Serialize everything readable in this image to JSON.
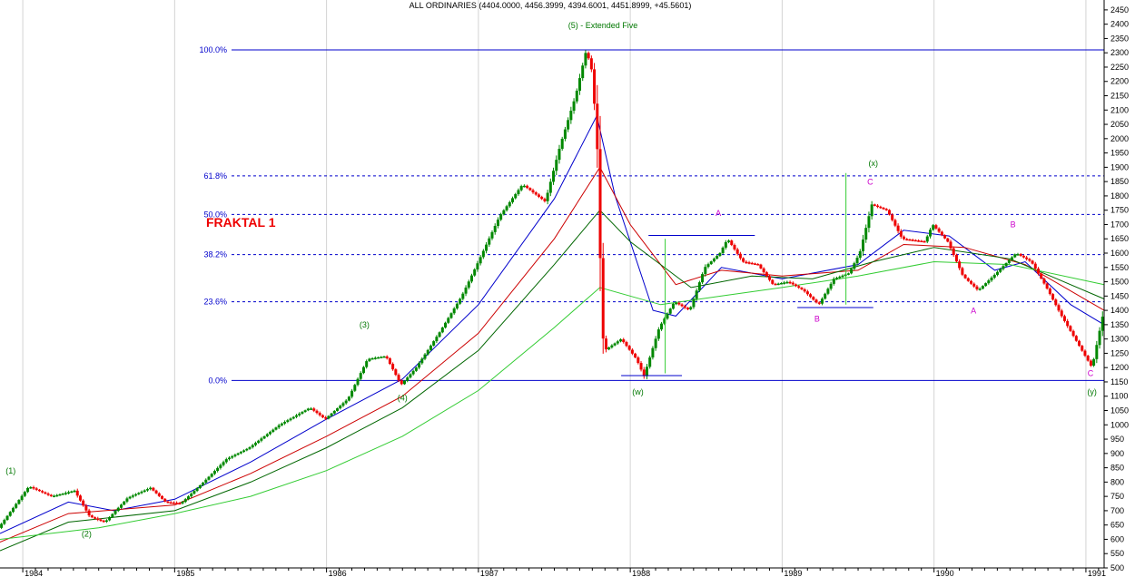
{
  "chart_data": {
    "type": "candlestick",
    "title": "ALL ORDINARIES (4404.0000, 4456.3999, 4394.6001, 4451.8999, +45.5601)",
    "subtitle": "(5) - Extended Five",
    "annotation": "FRAKTAL 1",
    "ylim": [
      500,
      2475
    ],
    "y_ticks": [
      500,
      550,
      600,
      650,
      700,
      750,
      800,
      850,
      900,
      950,
      1000,
      1050,
      1100,
      1150,
      1200,
      1250,
      1300,
      1350,
      1400,
      1450,
      1500,
      1550,
      1600,
      1650,
      1700,
      1750,
      1800,
      1850,
      1900,
      1950,
      2000,
      2050,
      2100,
      2150,
      2200,
      2250,
      2300,
      2350,
      2400,
      2450
    ],
    "xlim": [
      1983.85,
      1991.12
    ],
    "x_ticks": [
      {
        "x": 1984.0,
        "label": "1984"
      },
      {
        "x": 1985.0,
        "label": "1985"
      },
      {
        "x": 1986.0,
        "label": "1986"
      },
      {
        "x": 1987.0,
        "label": "1987"
      },
      {
        "x": 1988.0,
        "label": "1988"
      },
      {
        "x": 1989.0,
        "label": "1989"
      },
      {
        "x": 1990.0,
        "label": "1990"
      },
      {
        "x": 1991.0,
        "label": "1991"
      }
    ],
    "fib_levels": [
      {
        "label": "100.0%",
        "value": 2310,
        "style": "solid"
      },
      {
        "label": "61.8%",
        "value": 1870,
        "style": "dashed"
      },
      {
        "label": "50.0%",
        "value": 1735,
        "style": "dashed"
      },
      {
        "label": "38.2%",
        "value": 1595,
        "style": "dashed"
      },
      {
        "label": "23.6%",
        "value": 1430,
        "style": "dashed"
      },
      {
        "label": "0.0%",
        "value": 1155,
        "style": "solid"
      }
    ],
    "price_path": [
      [
        1983.85,
        640
      ],
      [
        1984.05,
        785
      ],
      [
        1984.2,
        750
      ],
      [
        1984.35,
        770
      ],
      [
        1984.45,
        680
      ],
      [
        1984.55,
        660
      ],
      [
        1984.7,
        745
      ],
      [
        1984.85,
        780
      ],
      [
        1984.95,
        730
      ],
      [
        1985.05,
        725
      ],
      [
        1985.2,
        800
      ],
      [
        1985.35,
        880
      ],
      [
        1985.5,
        920
      ],
      [
        1985.7,
        1000
      ],
      [
        1985.9,
        1060
      ],
      [
        1986.0,
        1020
      ],
      [
        1986.15,
        1090
      ],
      [
        1986.28,
        1230
      ],
      [
        1986.4,
        1240
      ],
      [
        1986.5,
        1140
      ],
      [
        1986.6,
        1200
      ],
      [
        1986.75,
        1320
      ],
      [
        1986.9,
        1450
      ],
      [
        1987.0,
        1560
      ],
      [
        1987.15,
        1730
      ],
      [
        1987.3,
        1840
      ],
      [
        1987.45,
        1780
      ],
      [
        1987.55,
        1980
      ],
      [
        1987.65,
        2150
      ],
      [
        1987.72,
        2310
      ],
      [
        1987.76,
        2230
      ],
      [
        1987.8,
        1900
      ],
      [
        1987.82,
        1350
      ],
      [
        1987.84,
        1260
      ],
      [
        1987.95,
        1300
      ],
      [
        1988.05,
        1230
      ],
      [
        1988.1,
        1170
      ],
      [
        1988.2,
        1340
      ],
      [
        1988.3,
        1430
      ],
      [
        1988.4,
        1400
      ],
      [
        1988.5,
        1550
      ],
      [
        1988.6,
        1600
      ],
      [
        1988.65,
        1650
      ],
      [
        1988.75,
        1570
      ],
      [
        1988.85,
        1560
      ],
      [
        1988.95,
        1490
      ],
      [
        1989.05,
        1500
      ],
      [
        1989.15,
        1470
      ],
      [
        1989.25,
        1420
      ],
      [
        1989.35,
        1510
      ],
      [
        1989.45,
        1530
      ],
      [
        1989.52,
        1600
      ],
      [
        1989.6,
        1770
      ],
      [
        1989.7,
        1750
      ],
      [
        1989.75,
        1700
      ],
      [
        1989.8,
        1650
      ],
      [
        1989.95,
        1640
      ],
      [
        1990.0,
        1700
      ],
      [
        1990.1,
        1640
      ],
      [
        1990.2,
        1520
      ],
      [
        1990.3,
        1470
      ],
      [
        1990.4,
        1520
      ],
      [
        1990.55,
        1600
      ],
      [
        1990.65,
        1570
      ],
      [
        1990.75,
        1480
      ],
      [
        1990.85,
        1380
      ],
      [
        1990.95,
        1290
      ],
      [
        1991.05,
        1200
      ],
      [
        1991.12,
        1380
      ]
    ],
    "ma_lines": [
      {
        "color": "#0000cc",
        "points": [
          [
            1983.85,
            620
          ],
          [
            1984.3,
            730
          ],
          [
            1984.6,
            700
          ],
          [
            1985.0,
            740
          ],
          [
            1985.5,
            870
          ],
          [
            1986.0,
            1020
          ],
          [
            1986.5,
            1160
          ],
          [
            1987.0,
            1420
          ],
          [
            1987.5,
            1790
          ],
          [
            1987.78,
            2080
          ],
          [
            1987.9,
            1800
          ],
          [
            1988.15,
            1400
          ],
          [
            1988.3,
            1380
          ],
          [
            1988.6,
            1550
          ],
          [
            1989.0,
            1510
          ],
          [
            1989.5,
            1560
          ],
          [
            1989.8,
            1680
          ],
          [
            1990.1,
            1660
          ],
          [
            1990.4,
            1540
          ],
          [
            1990.6,
            1570
          ],
          [
            1990.9,
            1420
          ],
          [
            1991.12,
            1350
          ]
        ]
      },
      {
        "color": "#cc0000",
        "points": [
          [
            1983.85,
            590
          ],
          [
            1984.3,
            690
          ],
          [
            1985.0,
            720
          ],
          [
            1985.5,
            830
          ],
          [
            1986.0,
            960
          ],
          [
            1986.5,
            1100
          ],
          [
            1987.0,
            1320
          ],
          [
            1987.5,
            1650
          ],
          [
            1987.8,
            1900
          ],
          [
            1988.0,
            1700
          ],
          [
            1988.3,
            1490
          ],
          [
            1988.6,
            1540
          ],
          [
            1989.0,
            1520
          ],
          [
            1989.5,
            1540
          ],
          [
            1989.8,
            1630
          ],
          [
            1990.2,
            1620
          ],
          [
            1990.6,
            1560
          ],
          [
            1991.12,
            1400
          ]
        ]
      },
      {
        "color": "#006600",
        "points": [
          [
            1983.85,
            560
          ],
          [
            1984.3,
            660
          ],
          [
            1985.0,
            700
          ],
          [
            1985.5,
            800
          ],
          [
            1986.0,
            920
          ],
          [
            1986.5,
            1060
          ],
          [
            1987.0,
            1260
          ],
          [
            1987.5,
            1560
          ],
          [
            1987.8,
            1750
          ],
          [
            1988.0,
            1640
          ],
          [
            1988.4,
            1480
          ],
          [
            1988.8,
            1520
          ],
          [
            1989.2,
            1510
          ],
          [
            1989.6,
            1570
          ],
          [
            1990.0,
            1620
          ],
          [
            1990.5,
            1580
          ],
          [
            1991.12,
            1440
          ]
        ]
      },
      {
        "color": "#33cc33",
        "points": [
          [
            1983.85,
            600
          ],
          [
            1984.5,
            640
          ],
          [
            1985.0,
            690
          ],
          [
            1985.5,
            750
          ],
          [
            1986.0,
            840
          ],
          [
            1986.5,
            960
          ],
          [
            1987.0,
            1120
          ],
          [
            1987.5,
            1340
          ],
          [
            1987.8,
            1480
          ],
          [
            1988.2,
            1420
          ],
          [
            1988.6,
            1450
          ],
          [
            1989.0,
            1480
          ],
          [
            1989.5,
            1520
          ],
          [
            1990.0,
            1570
          ],
          [
            1990.5,
            1560
          ],
          [
            1991.12,
            1490
          ]
        ]
      }
    ],
    "wave_labels": [
      {
        "text": "(1)",
        "x": 1983.92,
        "y": 830,
        "color": "#007700"
      },
      {
        "text": "(2)",
        "x": 1984.42,
        "y": 610,
        "color": "#007700"
      },
      {
        "text": "(3)",
        "x": 1986.25,
        "y": 1340,
        "color": "#007700"
      },
      {
        "text": "(4)",
        "x": 1986.5,
        "y": 1085,
        "color": "#007700"
      },
      {
        "text": "(w)",
        "x": 1988.05,
        "y": 1105,
        "color": "#007700"
      },
      {
        "text": "A",
        "x": 1988.58,
        "y": 1730,
        "color": "#cc00cc"
      },
      {
        "text": "B",
        "x": 1989.23,
        "y": 1360,
        "color": "#cc00cc"
      },
      {
        "text": "(x)",
        "x": 1989.6,
        "y": 1905,
        "color": "#007700"
      },
      {
        "text": "C",
        "x": 1989.58,
        "y": 1840,
        "color": "#cc00cc"
      },
      {
        "text": "B",
        "x": 1990.52,
        "y": 1690,
        "color": "#cc00cc"
      },
      {
        "text": "A",
        "x": 1990.26,
        "y": 1390,
        "color": "#cc00cc"
      },
      {
        "text": "C",
        "x": 1991.03,
        "y": 1170,
        "color": "#cc00cc"
      },
      {
        "text": "(y)",
        "x": 1991.04,
        "y": 1105,
        "color": "#007700"
      }
    ],
    "support_lines": [
      {
        "color": "#0000cc",
        "points": [
          [
            1988.12,
            1662
          ],
          [
            1988.82,
            1662
          ]
        ]
      },
      {
        "color": "#0000cc",
        "points": [
          [
            1987.94,
            1172
          ],
          [
            1988.34,
            1172
          ]
        ]
      },
      {
        "color": "#0000cc",
        "points": [
          [
            1989.1,
            1410
          ],
          [
            1989.6,
            1410
          ]
        ]
      },
      {
        "color": "#33cc33",
        "points": [
          [
            1988.23,
            1180
          ],
          [
            1988.23,
            1650
          ]
        ]
      },
      {
        "color": "#33cc33",
        "points": [
          [
            1989.42,
            1420
          ],
          [
            1989.42,
            1880
          ]
        ]
      }
    ]
  }
}
